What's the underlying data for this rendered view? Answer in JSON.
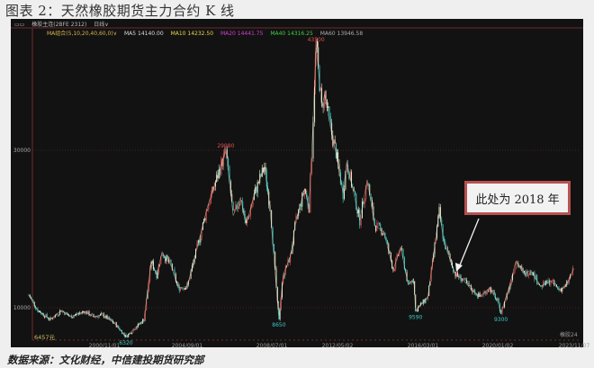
{
  "title": "图表 2：天然橡胶期货主力合约 K 线",
  "caption": "数据来源：文化财经，中信建投期货研究部",
  "panel_header": {
    "icon": "window-icon",
    "contract": "橡胶主连(2BFE 2312)",
    "period": "日线∨"
  },
  "ma_legend": {
    "combo": {
      "label": "MA组合(5,10,20,40,60,0)∨",
      "color": "#d9b44a"
    },
    "items": [
      {
        "label": "MA5 14140.00",
        "color": "#dddddd"
      },
      {
        "label": "MA10 14232.50",
        "color": "#e6d84a"
      },
      {
        "label": "MA20 14441.75",
        "color": "#d040d0"
      },
      {
        "label": "MA40 14316.25",
        "color": "#40d040"
      },
      {
        "label": "MA60 13946.58",
        "color": "#aaaaaa"
      }
    ]
  },
  "annotation": {
    "text": "此处为 2018 年",
    "target_date": "2018/03"
  },
  "bottom_left_label": "6457元",
  "bottom_right_label": "橡胶24",
  "chart_data": {
    "type": "candlestick",
    "title": "",
    "xlabel": "",
    "ylabel": "",
    "x_ticks": [
      "2000/11/01",
      "2004/09/01",
      "2008/07/01",
      "2012/05/02",
      "2016/03/01",
      "2020/01/02",
      "2023/11/07"
    ],
    "y_ticks": [
      10000,
      30000
    ],
    "ylim": [
      5500,
      45000
    ],
    "grid": "horizontal dotted at y ticks",
    "colors": {
      "up": "#e05050",
      "down": "#40d0c8",
      "neutral": "#e8e8d0",
      "background": "#121212"
    },
    "extreme_labels": [
      {
        "date": "2001/11",
        "value": 6320,
        "label": "6320",
        "color": "#40c8c8"
      },
      {
        "date": "2006/06",
        "value": 29980,
        "label": "29980",
        "color": "#e05050"
      },
      {
        "date": "2008/12",
        "value": 8650,
        "label": "8650",
        "color": "#40c8c8"
      },
      {
        "date": "2011/02",
        "value": 43500,
        "label": "43500",
        "color": "#e05050"
      },
      {
        "date": "2015/11",
        "value": 9590,
        "label": "9590",
        "color": "#40c8c8"
      },
      {
        "date": "2020/03",
        "value": 9300,
        "label": "9300",
        "color": "#40c8c8"
      }
    ],
    "series": [
      {
        "points": [
          [
            "1997/05",
            11600
          ],
          [
            "1997/10",
            9660
          ],
          [
            "1998/05",
            8500
          ],
          [
            "1998/11",
            9660
          ],
          [
            "1999/04",
            8860
          ],
          [
            "1999/12",
            9540
          ],
          [
            "2000/05",
            8860
          ],
          [
            "2000/10",
            9090
          ],
          [
            "2001/05",
            7940
          ],
          [
            "2001/10",
            6570
          ],
          [
            "2001/11",
            6320
          ],
          [
            "2002/09",
            8500
          ],
          [
            "2003/01",
            15900
          ],
          [
            "2003/04",
            14200
          ],
          [
            "2003/07",
            17000
          ],
          [
            "2003/12",
            15400
          ],
          [
            "2004/04",
            12500
          ],
          [
            "2004/09",
            12700
          ],
          [
            "2005/03",
            18200
          ],
          [
            "2005/08",
            22800
          ],
          [
            "2006/06",
            29980
          ],
          [
            "2006/10",
            21700
          ],
          [
            "2007/02",
            24000
          ],
          [
            "2007/05",
            20500
          ],
          [
            "2007/10",
            24800
          ],
          [
            "2008/03",
            27900
          ],
          [
            "2008/06",
            22800
          ],
          [
            "2008/11",
            10500
          ],
          [
            "2008/12",
            8650
          ],
          [
            "2009/03",
            14200
          ],
          [
            "2009/08",
            16500
          ],
          [
            "2009/12",
            21100
          ],
          [
            "2010/06",
            25100
          ],
          [
            "2010/09",
            22800
          ],
          [
            "2010/11",
            29700
          ],
          [
            "2011/01",
            38800
          ],
          [
            "2011/02",
            43500
          ],
          [
            "2011/06",
            35400
          ],
          [
            "2011/08",
            37100
          ],
          [
            "2012/01",
            32000
          ],
          [
            "2012/04",
            29700
          ],
          [
            "2012/08",
            24500
          ],
          [
            "2012/10",
            28500
          ],
          [
            "2013/05",
            21100
          ],
          [
            "2013/09",
            26200
          ],
          [
            "2014/01",
            20500
          ],
          [
            "2014/06",
            19600
          ],
          [
            "2014/11",
            14800
          ],
          [
            "2015/03",
            17700
          ],
          [
            "2015/07",
            12900
          ],
          [
            "2015/10",
            13700
          ],
          [
            "2015/11",
            9590
          ],
          [
            "2016/01",
            10200
          ],
          [
            "2016/06",
            11400
          ],
          [
            "2017/01",
            22200
          ],
          [
            "2017/04",
            18200
          ],
          [
            "2017/07",
            16500
          ],
          [
            "2017/11",
            14200
          ],
          [
            "2018/03",
            13700
          ],
          [
            "2018/08",
            12500
          ],
          [
            "2019/02",
            11400
          ],
          [
            "2019/08",
            12500
          ],
          [
            "2020/01",
            10800
          ],
          [
            "2020/03",
            9300
          ],
          [
            "2020/08",
            12700
          ],
          [
            "2020/12",
            15900
          ],
          [
            "2021/05",
            14200
          ],
          [
            "2021/09",
            14800
          ],
          [
            "2022/03",
            12700
          ],
          [
            "2022/09",
            13400
          ],
          [
            "2023/02",
            12300
          ],
          [
            "2023/06",
            12700
          ],
          [
            "2023/11",
            15000
          ]
        ]
      }
    ]
  }
}
